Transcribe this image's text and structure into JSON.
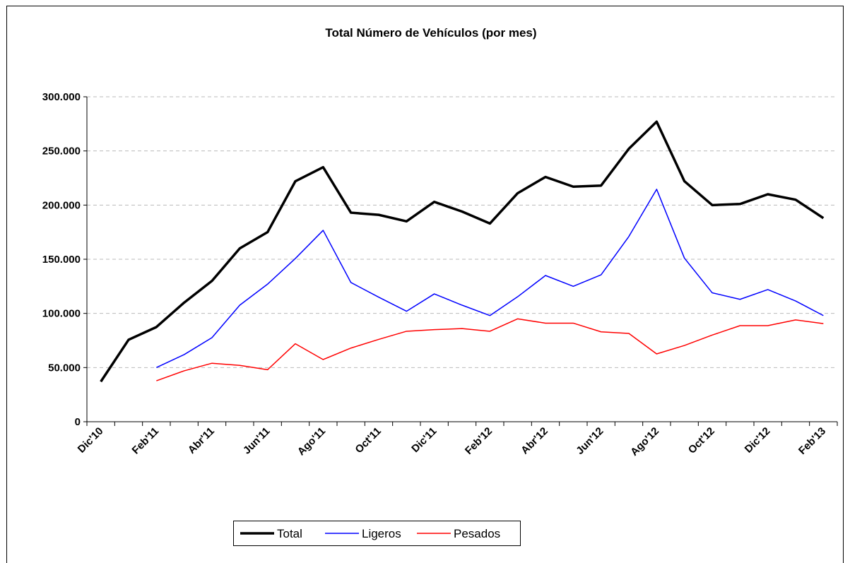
{
  "chart_data": {
    "type": "line",
    "title": "Total Número de Vehículos (por mes)",
    "categories": [
      "Dic'10",
      null,
      "Feb'11",
      null,
      "Abr'11",
      null,
      "Jun'11",
      null,
      "Ago'11",
      null,
      "Oct'11",
      null,
      "Dic'11",
      null,
      "Feb'12",
      null,
      "Abr'12",
      null,
      "Jun'12",
      null,
      "Ago'12",
      null,
      "Oct'12",
      null,
      "Dic'12",
      null,
      "Feb'13"
    ],
    "series": [
      {
        "name": "Total",
        "color": "#000000",
        "values": [
          37000,
          75700,
          87400,
          110000,
          130000,
          160000,
          175000,
          222000,
          235000,
          193000,
          191000,
          185000,
          203000,
          194000,
          183000,
          211000,
          226000,
          217000,
          218000,
          252000,
          277000,
          222000,
          200000,
          201000,
          210000,
          205000,
          188000
        ]
      },
      {
        "name": "Ligeros",
        "color": "#0000ff",
        "values": [
          null,
          null,
          50000,
          62000,
          77600,
          107600,
          127000,
          150700,
          176700,
          128500,
          115000,
          102000,
          118000,
          107600,
          98000,
          115400,
          135000,
          125000,
          135600,
          171000,
          214600,
          151000,
          119000,
          113000,
          122000,
          111500,
          98000
        ]
      },
      {
        "name": "Pesados",
        "color": "#ff0000",
        "values": [
          null,
          null,
          37800,
          47000,
          54000,
          52000,
          48000,
          72000,
          57400,
          68000,
          76000,
          83500,
          85000,
          86000,
          83500,
          95000,
          91000,
          91000,
          83000,
          81500,
          62600,
          70400,
          80000,
          88700,
          88700,
          94000,
          90600
        ]
      }
    ],
    "ylim": [
      0,
      300000
    ],
    "yticks": [
      0,
      {
        "value": 50000,
        "label": "50.000"
      },
      {
        "value": 100000,
        "label": "100.000"
      },
      {
        "value": 150000,
        "label": "150.000"
      },
      {
        "value": 200000,
        "label": "200.000"
      },
      {
        "value": 250000,
        "label": "250.000"
      },
      {
        "value": 300000,
        "label": "300.000"
      }
    ],
    "grid": true,
    "legend": "bottom"
  }
}
